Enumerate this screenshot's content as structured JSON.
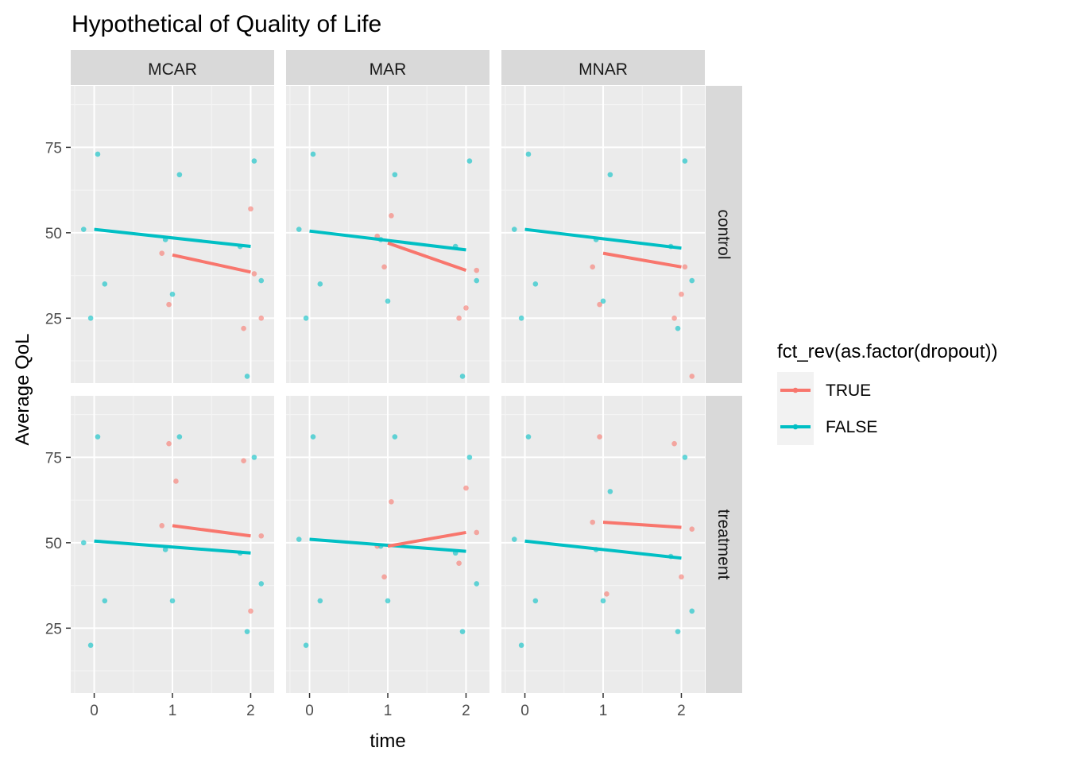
{
  "chart_data": {
    "type": "scatter",
    "title": "Hypothetical of Quality of Life",
    "xlabel": "time",
    "ylabel": "Average QoL",
    "x_ticks": [
      0,
      1,
      2
    ],
    "y_ticks": [
      25,
      50,
      75
    ],
    "xlim": [
      -0.3,
      2.3
    ],
    "ylim": [
      6,
      93
    ],
    "grid": true,
    "legend": {
      "title": "fct_rev(as.factor(dropout))",
      "position": "right",
      "entries": [
        {
          "label": "TRUE",
          "color": "#F8766D"
        },
        {
          "label": "FALSE",
          "color": "#00BFC4"
        }
      ]
    },
    "facet_columns": [
      "MCAR",
      "MAR",
      "MNAR"
    ],
    "facet_rows": [
      "control",
      "treatment"
    ],
    "colors": {
      "TRUE": "#F8766D",
      "FALSE": "#00BFC4"
    },
    "panels": [
      {
        "row": "control",
        "column": "MCAR",
        "lines": [
          {
            "series": "FALSE",
            "points": [
              [
                0,
                51
              ],
              [
                2,
                46
              ]
            ]
          },
          {
            "series": "TRUE",
            "points": [
              [
                1,
                43.5
              ],
              [
                2,
                38.5
              ]
            ]
          }
        ],
        "points": {
          "FALSE": [
            [
              0,
              51
            ],
            [
              0,
              25
            ],
            [
              0,
              73
            ],
            [
              0,
              35
            ],
            [
              1,
              48
            ],
            [
              1,
              32
            ],
            [
              1,
              67
            ],
            [
              2,
              46
            ],
            [
              2,
              8
            ],
            [
              2,
              71
            ],
            [
              2,
              36
            ]
          ],
          "TRUE": [
            [
              1,
              44
            ],
            [
              1,
              29
            ],
            [
              2,
              38
            ],
            [
              2,
              25
            ],
            [
              2,
              22
            ],
            [
              2,
              57
            ]
          ]
        }
      },
      {
        "row": "control",
        "column": "MAR",
        "lines": [
          {
            "series": "FALSE",
            "points": [
              [
                0,
                50.5
              ],
              [
                2,
                45
              ]
            ]
          },
          {
            "series": "TRUE",
            "points": [
              [
                1,
                47
              ],
              [
                2,
                39
              ]
            ]
          }
        ],
        "points": {
          "FALSE": [
            [
              0,
              51
            ],
            [
              0,
              25
            ],
            [
              0,
              73
            ],
            [
              0,
              35
            ],
            [
              1,
              48
            ],
            [
              1,
              30
            ],
            [
              1,
              67
            ],
            [
              2,
              46
            ],
            [
              2,
              8
            ],
            [
              2,
              71
            ],
            [
              2,
              36
            ]
          ],
          "TRUE": [
            [
              1,
              49
            ],
            [
              1,
              40
            ],
            [
              1,
              55
            ],
            [
              2,
              39
            ],
            [
              2,
              25
            ],
            [
              2,
              28
            ]
          ]
        }
      },
      {
        "row": "control",
        "column": "MNAR",
        "lines": [
          {
            "series": "FALSE",
            "points": [
              [
                0,
                51
              ],
              [
                2,
                45.5
              ]
            ]
          },
          {
            "series": "TRUE",
            "points": [
              [
                1,
                44
              ],
              [
                2,
                40
              ]
            ]
          }
        ],
        "points": {
          "FALSE": [
            [
              0,
              51
            ],
            [
              0,
              25
            ],
            [
              0,
              73
            ],
            [
              0,
              35
            ],
            [
              1,
              48
            ],
            [
              1,
              30
            ],
            [
              1,
              67
            ],
            [
              2,
              46
            ],
            [
              2,
              22
            ],
            [
              2,
              71
            ],
            [
              2,
              36
            ]
          ],
          "TRUE": [
            [
              1,
              40
            ],
            [
              1,
              29
            ],
            [
              2,
              40
            ],
            [
              2,
              8
            ],
            [
              2,
              25
            ],
            [
              2,
              32
            ]
          ]
        }
      },
      {
        "row": "treatment",
        "column": "MCAR",
        "lines": [
          {
            "series": "FALSE",
            "points": [
              [
                0,
                50.5
              ],
              [
                2,
                47
              ]
            ]
          },
          {
            "series": "TRUE",
            "points": [
              [
                1,
                55
              ],
              [
                2,
                52
              ]
            ]
          }
        ],
        "points": {
          "FALSE": [
            [
              0,
              50
            ],
            [
              0,
              20
            ],
            [
              0,
              81
            ],
            [
              0,
              33
            ],
            [
              1,
              48
            ],
            [
              1,
              33
            ],
            [
              1,
              81
            ],
            [
              2,
              47
            ],
            [
              2,
              24
            ],
            [
              2,
              75
            ],
            [
              2,
              38
            ]
          ],
          "TRUE": [
            [
              1,
              55
            ],
            [
              1,
              79
            ],
            [
              1,
              68
            ],
            [
              2,
              52
            ],
            [
              2,
              74
            ],
            [
              2,
              30
            ]
          ]
        }
      },
      {
        "row": "treatment",
        "column": "MAR",
        "lines": [
          {
            "series": "FALSE",
            "points": [
              [
                0,
                51
              ],
              [
                2,
                47.5
              ]
            ]
          },
          {
            "series": "TRUE",
            "points": [
              [
                1,
                49
              ],
              [
                2,
                53
              ]
            ]
          }
        ],
        "points": {
          "FALSE": [
            [
              0,
              51
            ],
            [
              0,
              20
            ],
            [
              0,
              81
            ],
            [
              0,
              33
            ],
            [
              1,
              49
            ],
            [
              1,
              33
            ],
            [
              1,
              81
            ],
            [
              2,
              47
            ],
            [
              2,
              24
            ],
            [
              2,
              75
            ],
            [
              2,
              38
            ]
          ],
          "TRUE": [
            [
              1,
              49
            ],
            [
              1,
              40
            ],
            [
              1,
              62
            ],
            [
              2,
              53
            ],
            [
              2,
              44
            ],
            [
              2,
              66
            ]
          ]
        }
      },
      {
        "row": "treatment",
        "column": "MNAR",
        "lines": [
          {
            "series": "FALSE",
            "points": [
              [
                0,
                50.5
              ],
              [
                2,
                45.5
              ]
            ]
          },
          {
            "series": "TRUE",
            "points": [
              [
                1,
                56
              ],
              [
                2,
                54.5
              ]
            ]
          }
        ],
        "points": {
          "FALSE": [
            [
              0,
              51
            ],
            [
              0,
              20
            ],
            [
              0,
              81
            ],
            [
              0,
              33
            ],
            [
              1,
              48
            ],
            [
              1,
              33
            ],
            [
              1,
              65
            ],
            [
              2,
              46
            ],
            [
              2,
              24
            ],
            [
              2,
              75
            ],
            [
              2,
              30
            ]
          ],
          "TRUE": [
            [
              1,
              56
            ],
            [
              1,
              81
            ],
            [
              1,
              35
            ],
            [
              2,
              54
            ],
            [
              2,
              79
            ],
            [
              2,
              40
            ]
          ]
        }
      }
    ]
  }
}
